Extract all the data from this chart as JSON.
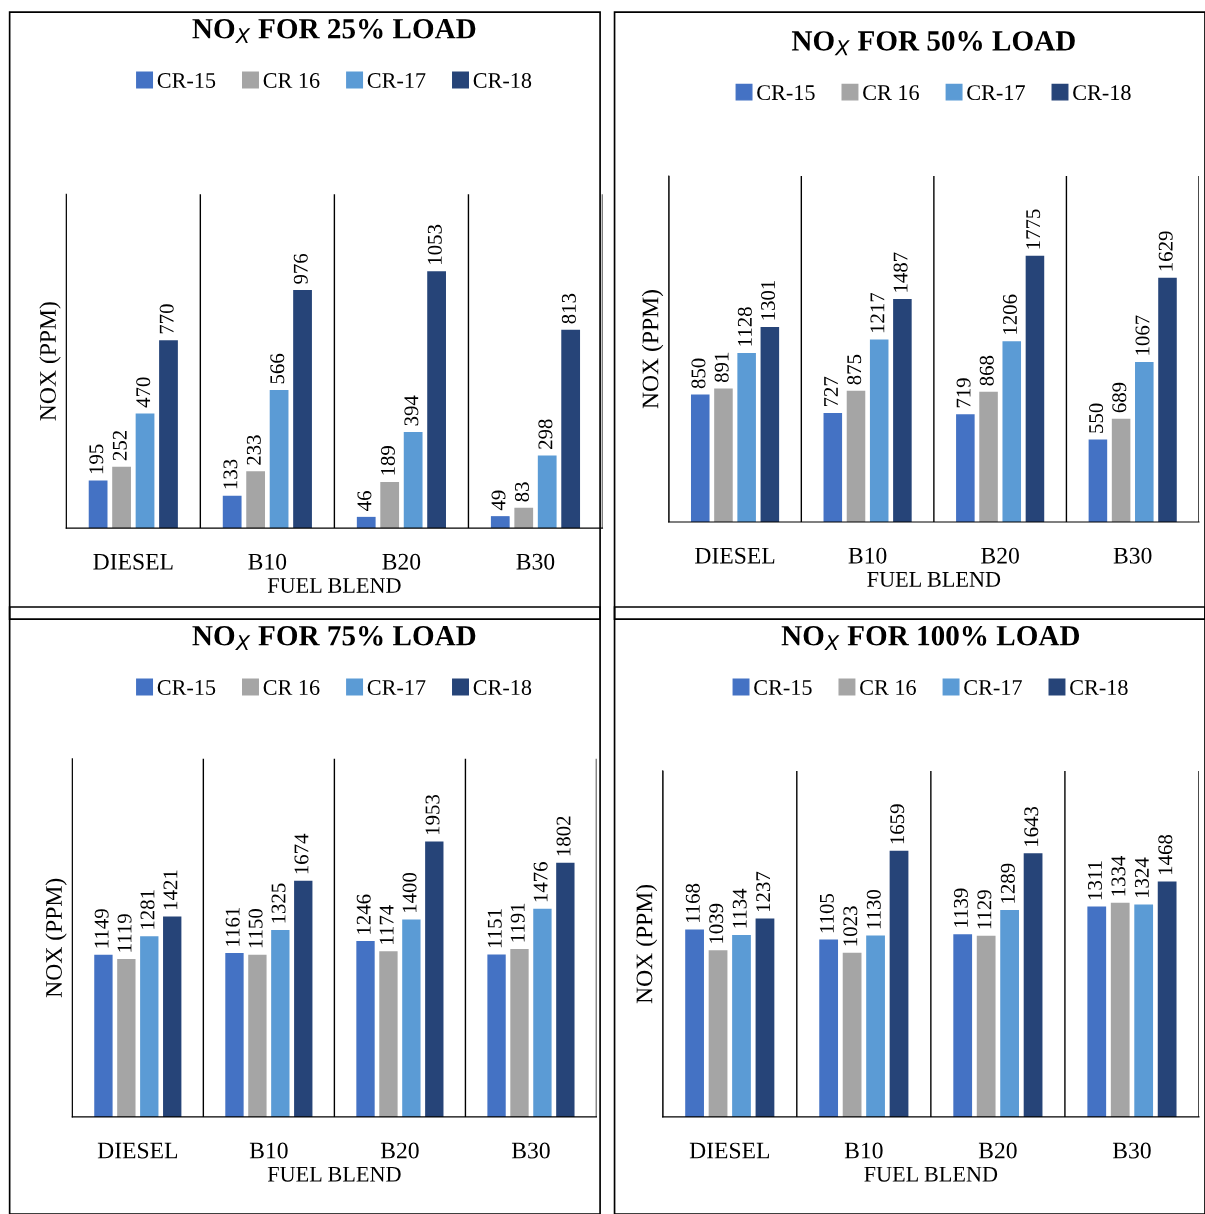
{
  "chart_data": [
    {
      "type": "bar",
      "title": "NO$_{X}$ FOR 25% LOAD",
      "xlabel": "FUEL BLEND",
      "ylabel": "NOX (PPM)",
      "categories": [
        "DIESEL",
        "B10",
        "B20",
        "B30"
      ],
      "data_labels": true,
      "legend": "top",
      "grid": "x",
      "tick_labels": "x",
      "series": [
        {
          "name": "CR-15",
          "color": "#4472c4",
          "values": [
            195,
            133,
            46,
            49
          ]
        },
        {
          "name": "CR 16",
          "color": "#a5a5a5",
          "values": [
            252,
            233,
            189,
            83
          ]
        },
        {
          "name": "CR-17",
          "color": "#5b9bd5",
          "values": [
            470,
            566,
            394,
            298
          ]
        },
        {
          "name": "CR-18",
          "color": "#264478",
          "values": [
            770,
            976,
            1053,
            813
          ]
        }
      ]
    },
    {
      "type": "bar",
      "title": "NO$_{X}$ FOR 50% LOAD",
      "xlabel": "FUEL BLEND",
      "ylabel": "NOX (PPM)",
      "categories": [
        "DIESEL",
        "B10",
        "B20",
        "B30"
      ],
      "data_labels": true,
      "legend": "top",
      "grid": "x",
      "tick_labels": "x",
      "series": [
        {
          "name": "CR-15",
          "color": "#4472c4",
          "values": [
            850,
            727,
            719,
            550
          ]
        },
        {
          "name": "CR 16",
          "color": "#a5a5a5",
          "values": [
            891,
            875,
            868,
            689
          ]
        },
        {
          "name": "CR-17",
          "color": "#5b9bd5",
          "values": [
            1128,
            1217,
            1206,
            1067
          ]
        },
        {
          "name": "CR-18",
          "color": "#264478",
          "values": [
            1301,
            1487,
            1775,
            1629
          ]
        }
      ]
    },
    {
      "type": "bar",
      "title": "NO$_{X}$ FOR 75% LOAD",
      "xlabel": "FUEL BLEND",
      "ylabel": "NOX (PPM)",
      "categories": [
        "DIESEL",
        "B10",
        "B20",
        "B30"
      ],
      "data_labels": true,
      "legend": "top",
      "grid": "x",
      "tick_labels": "x",
      "series": [
        {
          "name": "CR-15",
          "color": "#4472c4",
          "values": [
            1149,
            1161,
            1246,
            1151
          ]
        },
        {
          "name": "CR 16",
          "color": "#a5a5a5",
          "values": [
            1119,
            1150,
            1174,
            1191
          ]
        },
        {
          "name": "CR-17",
          "color": "#5b9bd5",
          "values": [
            1281,
            1325,
            1400,
            1476
          ]
        },
        {
          "name": "CR-18",
          "color": "#264478",
          "values": [
            1421,
            1674,
            1953,
            1802
          ]
        }
      ]
    },
    {
      "type": "bar",
      "title": "NO$_{X}$ FOR 100% LOAD",
      "xlabel": "FUEL BLEND",
      "ylabel": "NOX (PPM)",
      "categories": [
        "DIESEL",
        "B10",
        "B20",
        "B30"
      ],
      "data_labels": true,
      "legend": "top",
      "grid": "x",
      "tick_labels": "x",
      "series": [
        {
          "name": "CR-15",
          "color": "#4472c4",
          "values": [
            1168,
            1105,
            1139,
            1311
          ]
        },
        {
          "name": "CR 16",
          "color": "#a5a5a5",
          "values": [
            1039,
            1023,
            1129,
            1334
          ]
        },
        {
          "name": "CR-17",
          "color": "#5b9bd5",
          "values": [
            1134,
            1130,
            1289,
            1324
          ]
        },
        {
          "name": "CR-18",
          "color": "#264478",
          "values": [
            1237,
            1659,
            1643,
            1468
          ]
        }
      ]
    }
  ]
}
